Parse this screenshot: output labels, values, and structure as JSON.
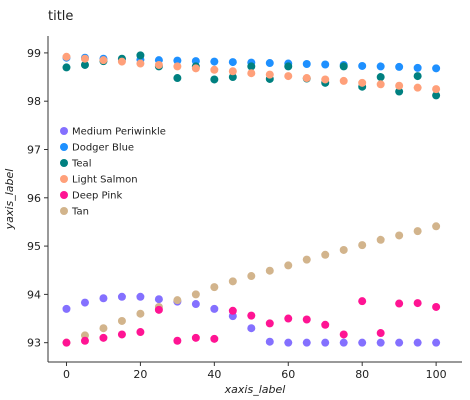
{
  "chart_data": {
    "type": "scatter",
    "title": "title",
    "xlabel": "xaxis_label",
    "ylabel": "yaxis_label",
    "xlim": [
      -5,
      107
    ],
    "ylim": [
      92.6,
      99.35
    ],
    "xticks": [
      0,
      20,
      40,
      60,
      80,
      100
    ],
    "xtick_labels": [
      "0",
      "20",
      "40",
      "60",
      "80",
      "100"
    ],
    "yticks": [
      93,
      94,
      95,
      96,
      97,
      98,
      99
    ],
    "ytick_labels": [
      "93",
      "94",
      "95",
      "96",
      "97",
      "98",
      "99"
    ],
    "grid": false,
    "legend_position": "left, inside plot, upper middle",
    "x": [
      0,
      5,
      10,
      15,
      20,
      25,
      30,
      35,
      40,
      45,
      50,
      55,
      60,
      65,
      70,
      75,
      80,
      85,
      90,
      95,
      100
    ],
    "series": [
      {
        "name": "Dodger Blue",
        "color": "#1e90ff",
        "values": [
          98.9,
          98.9,
          98.88,
          98.87,
          98.86,
          98.85,
          98.84,
          98.83,
          98.82,
          98.81,
          98.8,
          98.79,
          98.78,
          98.77,
          98.76,
          98.75,
          98.73,
          98.72,
          98.71,
          98.69,
          98.68
        ]
      },
      {
        "name": "Teal",
        "color": "#008080",
        "values": [
          98.7,
          98.75,
          98.83,
          98.88,
          98.95,
          98.72,
          98.48,
          98.72,
          98.45,
          98.5,
          98.72,
          98.46,
          98.72,
          98.47,
          98.38,
          98.72,
          98.3,
          98.5,
          98.2,
          98.52,
          98.12
        ]
      },
      {
        "name": "Light Salmon",
        "color": "#ffa07a",
        "values": [
          98.92,
          98.88,
          98.85,
          98.82,
          98.78,
          98.75,
          98.72,
          98.68,
          98.65,
          98.62,
          98.58,
          98.55,
          98.52,
          98.48,
          98.45,
          98.42,
          98.38,
          98.35,
          98.32,
          98.28,
          98.25
        ]
      },
      {
        "name": "Medium Periwinkle",
        "color": "#8470ff",
        "values": [
          93.7,
          93.83,
          93.92,
          93.95,
          93.95,
          93.9,
          93.85,
          93.8,
          93.7,
          93.55,
          93.3,
          93.02,
          93.0,
          93.0,
          93.0,
          93.0,
          93.0,
          93.0,
          93.0,
          93.0,
          93.0
        ]
      },
      {
        "name": "Tan",
        "color": "#d2b48c",
        "values": [
          93.0,
          93.15,
          93.3,
          93.45,
          93.6,
          93.74,
          93.88,
          94.0,
          94.15,
          94.27,
          94.38,
          94.49,
          94.6,
          94.72,
          94.82,
          94.92,
          95.02,
          95.13,
          95.22,
          95.31,
          95.41
        ]
      },
      {
        "name": "Deep Pink",
        "color": "#ff1493",
        "values": [
          93.0,
          93.04,
          93.1,
          93.17,
          93.22,
          93.68,
          93.04,
          93.1,
          93.08,
          93.66,
          93.56,
          93.4,
          93.5,
          93.48,
          93.37,
          93.17,
          93.86,
          93.2,
          93.81,
          93.82,
          93.74
        ]
      }
    ]
  }
}
